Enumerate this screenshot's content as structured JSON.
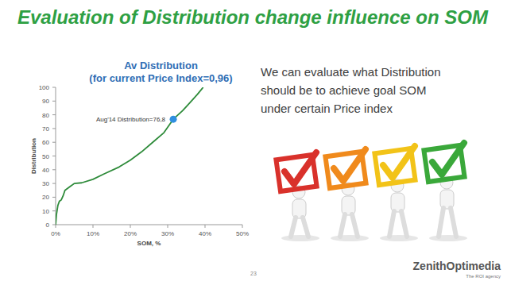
{
  "slide": {
    "title": "Evaluation of Distribution change influence on SOM",
    "text": [
      "We can evaluate what Distribution",
      "should be to achieve goal SOM",
      "under certain Price index"
    ],
    "page": "23",
    "logo": "ZenithOptimedia",
    "logo_tagline": "The ROI agency"
  },
  "chart_data": {
    "type": "line",
    "title": "Av Distribution",
    "subtitle": "(for current Price Index=0,96)",
    "x_label": "SOM, %",
    "y_label": "Distribution",
    "x": [
      0,
      0.2,
      0.6,
      1,
      1.5,
      2,
      2.5,
      3,
      4,
      5,
      7,
      10,
      13,
      17,
      20,
      23,
      26,
      29,
      31.5,
      34,
      36,
      38,
      39.5
    ],
    "values": [
      0,
      7,
      14,
      17,
      18,
      21,
      25,
      26,
      28,
      30,
      30.5,
      33,
      37,
      42,
      47,
      53,
      60,
      67,
      76.8,
      83,
      89,
      95,
      100
    ],
    "color": "#2e8b3a",
    "xlim": [
      0,
      50
    ],
    "xticks": [
      {
        "value": 0,
        "label": "0%"
      },
      {
        "value": 10,
        "label": "10%"
      },
      {
        "value": 20,
        "label": "20%"
      },
      {
        "value": 30,
        "label": "30%"
      },
      {
        "value": 40,
        "label": "40%"
      },
      {
        "value": 50,
        "label": "50%"
      }
    ],
    "ylim": [
      0,
      100
    ],
    "yticks": [
      0,
      10,
      20,
      30,
      40,
      50,
      60,
      70,
      80,
      90,
      100
    ],
    "grid": false,
    "annotations": [
      {
        "text": "Aug'14 Distribution=76,8",
        "x": 31.5,
        "y": 76.8
      }
    ]
  }
}
